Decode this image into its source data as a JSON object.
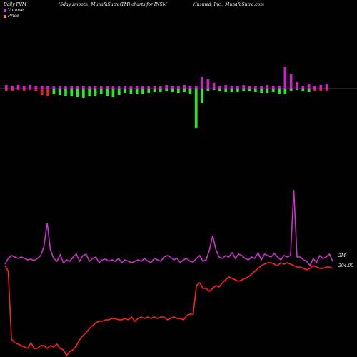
{
  "header": {
    "left": "Daily PVM",
    "middle": "(5day smooth) MunafaSutra(TM) charts for INSM",
    "right": "(Insmed, Inc.) MunafaSutra.com"
  },
  "legend": [
    {
      "label": "Volume",
      "color": "#ee22ee"
    },
    {
      "label": "Price",
      "color": "#ff8844"
    }
  ],
  "colors": {
    "volume_up": "#cc22cc",
    "volume_down": "#22ee22",
    "volume_red": "#ee2222",
    "volume_line": "#cc33cc",
    "price_line": "#ff2222",
    "baseline": "#888888"
  },
  "chart_data": [
    {
      "type": "bar",
      "title": "",
      "series": [
        {
          "values": [
            5,
            -3,
            4,
            -3,
            5,
            -2,
            4,
            -3,
            5,
            -2,
            4,
            -4,
            4,
            -9,
            4,
            -11,
            3,
            -8,
            4,
            -9,
            3,
            -10,
            4,
            -11,
            3,
            -12,
            4,
            -13,
            3,
            -11,
            4,
            -11,
            3,
            -8,
            3,
            -10,
            3,
            -12,
            3,
            -9,
            4,
            -6,
            3,
            -7,
            4,
            -7,
            3,
            -7,
            3,
            -6,
            4,
            -5,
            3,
            -5,
            5,
            -4,
            4,
            -5,
            3,
            -6,
            5,
            -5,
            4,
            -8,
            4,
            -55,
            16,
            -20,
            13,
            -3,
            8,
            -2,
            4,
            -4,
            5,
            -5,
            4,
            -5,
            4,
            -5,
            5,
            -4,
            3,
            -4,
            4,
            -5,
            3,
            -6,
            5,
            -6,
            4,
            -5,
            4,
            -8,
            30,
            -8,
            20,
            -3,
            9,
            -2,
            4,
            -4,
            6,
            -5,
            4,
            -3,
            5,
            -3,
            6,
            -3
          ]
        }
      ],
      "bar_colors": [
        "up",
        "red",
        "up",
        "red",
        "up",
        "red",
        "up",
        "red",
        "up",
        "red",
        "up",
        "red",
        "up",
        "red",
        "up",
        "red",
        "up",
        "green",
        "up",
        "green",
        "up",
        "green",
        "up",
        "green",
        "up",
        "green",
        "up",
        "green",
        "up",
        "green",
        "up",
        "green",
        "up",
        "green",
        "up",
        "green",
        "up",
        "green",
        "up",
        "green",
        "up",
        "green",
        "up",
        "green",
        "up",
        "green",
        "up",
        "green",
        "up",
        "green",
        "up",
        "green",
        "up",
        "green",
        "up",
        "green",
        "up",
        "green",
        "up",
        "green",
        "up",
        "green",
        "up",
        "green",
        "up",
        "green",
        "up",
        "green",
        "up",
        "green",
        "up",
        "green",
        "up",
        "green",
        "up",
        "green",
        "up",
        "green",
        "up",
        "green",
        "up",
        "green",
        "up",
        "green",
        "up",
        "green",
        "up",
        "green",
        "up",
        "green",
        "up",
        "green",
        "up",
        "green",
        "up",
        "green",
        "up",
        "green",
        "up",
        "green",
        "up",
        "green",
        "up",
        "green",
        "up",
        "red",
        "up",
        "red",
        "up",
        "red",
        "up",
        "red"
      ]
    },
    {
      "type": "line",
      "title": "",
      "y_label_volume": "2M",
      "y_label_price": "204.00",
      "series": [
        {
          "name": "Volume",
          "values": [
            370,
            362,
            358,
            360,
            362,
            360,
            362,
            364,
            363,
            365,
            362,
            358,
            345,
            312,
            350,
            362,
            366,
            357,
            368,
            364,
            366,
            360,
            356,
            366,
            358,
            356,
            366,
            362,
            360,
            368,
            364,
            363,
            366,
            364,
            366,
            362,
            368,
            364,
            366,
            368,
            366,
            364,
            366,
            362,
            366,
            368,
            362,
            364,
            366,
            360,
            358,
            360,
            364,
            362,
            368,
            364,
            362,
            366,
            367,
            362,
            358,
            366,
            364,
            350,
            330,
            350,
            360,
            362,
            358,
            360,
            354,
            362,
            356,
            358,
            362,
            364,
            360,
            362,
            354,
            364,
            356,
            358,
            360,
            355,
            360,
            364,
            358,
            360,
            358,
            266,
            360,
            360,
            364,
            366,
            372,
            362,
            368,
            358,
            362,
            360,
            356,
            366
          ]
        },
        {
          "name": "Price",
          "values": [
            372,
            380,
            475,
            480,
            482,
            484,
            486,
            488,
            480,
            488,
            488,
            484,
            484,
            488,
            484,
            486,
            482,
            488,
            490,
            498,
            492,
            490,
            484,
            476,
            470,
            466,
            460,
            456,
            452,
            450,
            450,
            448,
            448,
            446,
            446,
            448,
            448,
            446,
            448,
            444,
            450,
            446,
            444,
            446,
            444,
            446,
            444,
            446,
            444,
            444,
            448,
            446,
            444,
            446,
            446,
            448,
            442,
            440,
            440,
            400,
            396,
            404,
            404,
            408,
            404,
            400,
            402,
            396,
            392,
            388,
            390,
            392,
            394,
            392,
            390,
            388,
            384,
            380,
            376,
            372,
            370,
            368,
            368,
            370,
            372,
            368,
            370,
            368,
            370,
            372,
            374,
            374,
            376,
            378,
            376,
            372,
            374,
            376,
            376,
            374,
            374,
            376
          ]
        }
      ]
    }
  ]
}
